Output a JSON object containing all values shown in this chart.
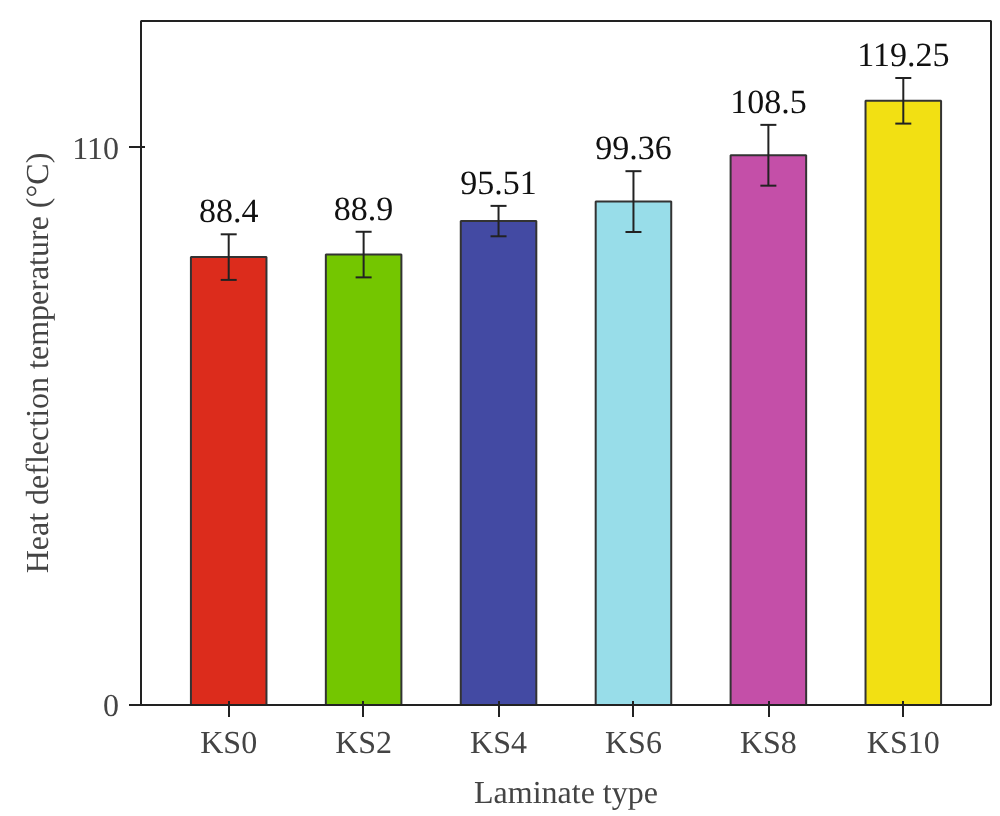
{
  "chart_data": {
    "type": "bar",
    "xlabel": "Laminate type",
    "ylabel": "Heat deflection temperature (°C)",
    "categories": [
      "KS0",
      "KS2",
      "KS4",
      "KS6",
      "KS8",
      "KS10"
    ],
    "values": [
      88.4,
      88.9,
      95.51,
      99.36,
      108.5,
      119.25
    ],
    "errors": [
      4.5,
      4.5,
      3,
      6,
      6,
      4.5
    ],
    "colors": [
      "#dc2c1c",
      "#74c600",
      "#434aa3",
      "#98dde9",
      "#c44fa8",
      "#f2e013"
    ],
    "ylim": [
      0,
      135
    ],
    "yticks": [
      0,
      110
    ],
    "data_labels": true,
    "grid": false
  }
}
